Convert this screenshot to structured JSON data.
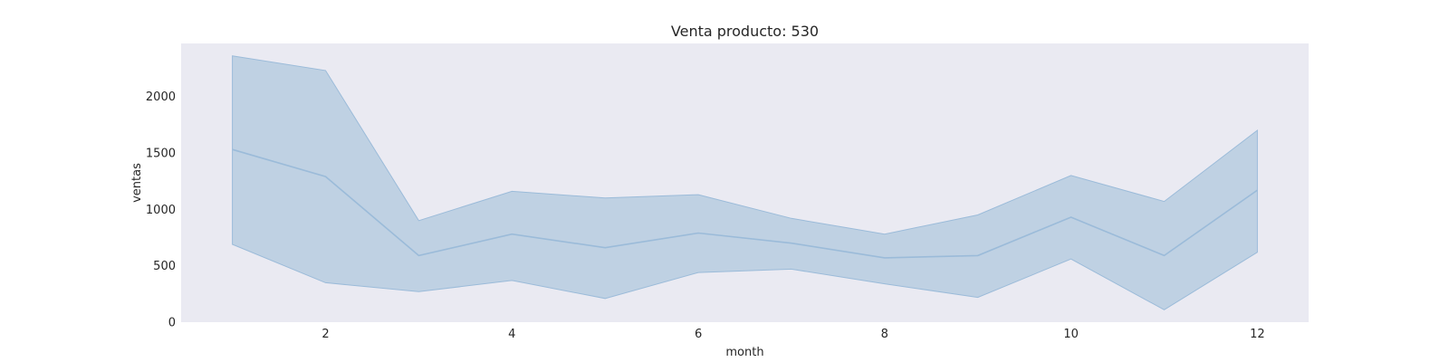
{
  "chart_data": {
    "type": "line",
    "title": "Venta producto: 530",
    "xlabel": "month",
    "ylabel": "ventas",
    "xlim": [
      0.45,
      12.55
    ],
    "ylim": [
      0,
      2470
    ],
    "xticks": [
      2,
      4,
      6,
      8,
      10,
      12
    ],
    "yticks": [
      0,
      500,
      1000,
      1500,
      2000
    ],
    "grid": false,
    "colors": {
      "plot_background": "#EAEAF2",
      "line": "#9BBBD9",
      "band_fill": "#B7CCE0"
    },
    "series": [
      {
        "x": [
          1,
          2,
          3,
          4,
          5,
          6,
          7,
          8,
          9,
          10,
          11,
          12
        ],
        "y": [
          1530,
          1290,
          590,
          780,
          660,
          790,
          700,
          570,
          590,
          930,
          590,
          1170
        ],
        "ci_lower": [
          690,
          350,
          270,
          370,
          210,
          440,
          470,
          340,
          220,
          560,
          110,
          620
        ],
        "ci_upper": [
          2360,
          2230,
          900,
          1160,
          1100,
          1130,
          920,
          780,
          950,
          1300,
          1070,
          1700
        ]
      }
    ]
  }
}
